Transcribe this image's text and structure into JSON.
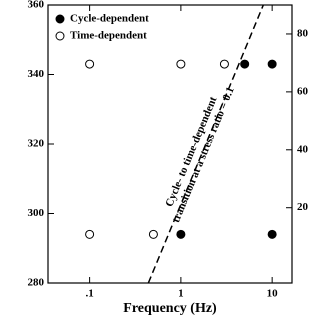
{
  "chart_data": {
    "type": "scatter",
    "x_label": "Frequency (Hz)",
    "x_scale": "log",
    "xlim": [
      0.035,
      16.5
    ],
    "xticks": [
      {
        "value": 0.1,
        "label": ".1"
      },
      1,
      10
    ],
    "ylim": [
      280,
      360
    ],
    "yticks": [
      280,
      300,
      320,
      340,
      360
    ],
    "y2lim": [
      -6,
      90
    ],
    "y2ticks": [
      20,
      40,
      60,
      80
    ],
    "legend": "upper-left",
    "series": [
      {
        "name": "Cycle-dependent",
        "color": "#000000",
        "marker_fill": true,
        "x": [
          1,
          5,
          10,
          10
        ],
        "values": [
          294,
          343,
          343,
          294
        ]
      },
      {
        "name": "Time-dependent",
        "color": "#000000",
        "marker_fill": false,
        "x": [
          0.1,
          1,
          3,
          0.1,
          0.5
        ],
        "values": [
          343,
          343,
          343,
          294,
          294
        ]
      }
    ],
    "annotations": [
      {
        "text": [
          "Cycle- to time-dependent",
          "transition at a stress ratio = 0.1"
        ],
        "x": [
          0.44,
          8
        ],
        "y": [
          280,
          360
        ]
      }
    ]
  }
}
